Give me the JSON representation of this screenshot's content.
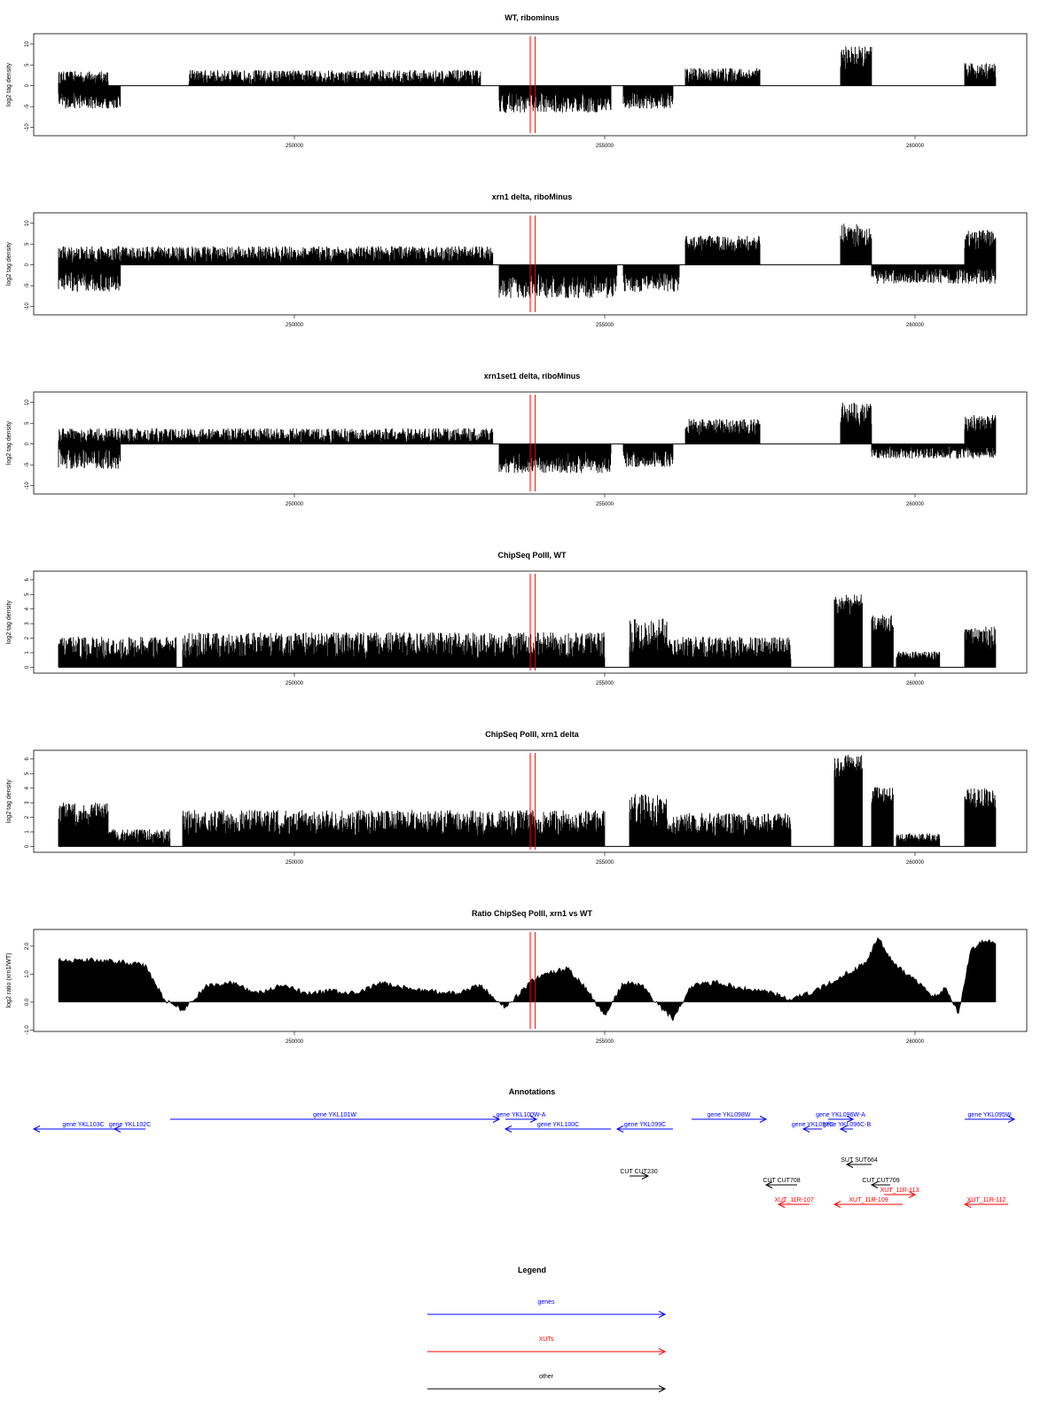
{
  "x_ticks": [
    "250000",
    "255000",
    "260000"
  ],
  "red_marker": [
    253800,
    253880
  ],
  "charts": [
    {
      "type": "bar",
      "title": "WT, ribominus",
      "ylabel": "log2 tag density",
      "y_ticks": [
        "-10",
        "-5",
        "0",
        "5",
        "10"
      ],
      "xlim": [
        245800,
        261800
      ],
      "ylim": [
        -12,
        12.5
      ],
      "chart_data": {
        "type": "bar",
        "regions": [
          {
            "x0": 246200,
            "x1": 247000,
            "y": 2,
            "noise": 1.5,
            "sign": 1
          },
          {
            "x0": 246200,
            "x1": 247200,
            "y": -3.5,
            "noise": 2,
            "sign": -1
          },
          {
            "x0": 248300,
            "x1": 253000,
            "y": 2,
            "noise": 1.8,
            "sign": 1
          },
          {
            "x0": 253300,
            "x1": 255100,
            "y": -4,
            "noise": 2.5,
            "sign": -1
          },
          {
            "x0": 255300,
            "x1": 256100,
            "y": -3.5,
            "noise": 2,
            "sign": -1
          },
          {
            "x0": 256300,
            "x1": 257500,
            "y": 2.5,
            "noise": 1.8,
            "sign": 1
          },
          {
            "x0": 258800,
            "x1": 259300,
            "y": 6.5,
            "noise": 3,
            "sign": 1
          },
          {
            "x0": 260800,
            "x1": 261300,
            "y": 3.5,
            "noise": 2,
            "sign": 1
          }
        ]
      }
    },
    {
      "type": "bar",
      "title": "xrn1 delta, riboMinus",
      "ylabel": "log2 tag density",
      "y_ticks": [
        "-10",
        "-5",
        "0",
        "5",
        "10"
      ],
      "xlim": [
        245800,
        261800
      ],
      "ylim": [
        -12,
        12.5
      ],
      "chart_data": {
        "type": "bar",
        "regions": [
          {
            "x0": 246200,
            "x1": 253200,
            "y": 2.5,
            "noise": 2,
            "sign": 1
          },
          {
            "x0": 246200,
            "x1": 247200,
            "y": -4,
            "noise": 2.5,
            "sign": -1
          },
          {
            "x0": 253300,
            "x1": 255200,
            "y": -5,
            "noise": 3,
            "sign": -1
          },
          {
            "x0": 255300,
            "x1": 256200,
            "y": -4,
            "noise": 2.5,
            "sign": -1
          },
          {
            "x0": 256300,
            "x1": 257500,
            "y": 5,
            "noise": 2,
            "sign": 1
          },
          {
            "x0": 258800,
            "x1": 259300,
            "y": 7,
            "noise": 3,
            "sign": 1
          },
          {
            "x0": 259300,
            "x1": 261300,
            "y": -2.5,
            "noise": 2,
            "sign": -1
          },
          {
            "x0": 260800,
            "x1": 261300,
            "y": 6,
            "noise": 2.5,
            "sign": 1
          }
        ]
      }
    },
    {
      "type": "bar",
      "title": "xrn1set1 delta, riboMinus",
      "ylabel": "log2 tag density",
      "y_ticks": [
        "-10",
        "-5",
        "0",
        "5",
        "10"
      ],
      "xlim": [
        245800,
        261800
      ],
      "ylim": [
        -12,
        12.5
      ],
      "chart_data": {
        "type": "bar",
        "regions": [
          {
            "x0": 246200,
            "x1": 253200,
            "y": 2,
            "noise": 1.8,
            "sign": 1
          },
          {
            "x0": 246200,
            "x1": 247200,
            "y": -3.5,
            "noise": 2.5,
            "sign": -1
          },
          {
            "x0": 253300,
            "x1": 255100,
            "y": -4.5,
            "noise": 2.5,
            "sign": -1
          },
          {
            "x0": 255300,
            "x1": 256100,
            "y": -3.5,
            "noise": 2,
            "sign": -1
          },
          {
            "x0": 256300,
            "x1": 257500,
            "y": 4,
            "noise": 2,
            "sign": 1
          },
          {
            "x0": 258800,
            "x1": 259300,
            "y": 7,
            "noise": 3,
            "sign": 1
          },
          {
            "x0": 259300,
            "x1": 261300,
            "y": -2,
            "noise": 1.5,
            "sign": -1
          },
          {
            "x0": 260800,
            "x1": 261300,
            "y": 5,
            "noise": 2,
            "sign": 1
          }
        ]
      }
    },
    {
      "type": "bar",
      "title": "ChipSeq PolII, WT",
      "ylabel": "log2 tag density",
      "y_ticks": [
        "0",
        "1",
        "2",
        "3",
        "4",
        "5",
        "6"
      ],
      "xlim": [
        245800,
        261800
      ],
      "ylim": [
        -0.4,
        6.6
      ],
      "chart_data": {
        "type": "bar",
        "regions": [
          {
            "x0": 246200,
            "x1": 248100,
            "y": 1.3,
            "noise": 0.8,
            "sign": 1
          },
          {
            "x0": 248200,
            "x1": 255000,
            "y": 1.5,
            "noise": 0.9,
            "sign": 1
          },
          {
            "x0": 255400,
            "x1": 256000,
            "y": 2.2,
            "noise": 1.2,
            "sign": 1
          },
          {
            "x0": 256000,
            "x1": 258000,
            "y": 1.3,
            "noise": 0.8,
            "sign": 1
          },
          {
            "x0": 258700,
            "x1": 259150,
            "y": 4.2,
            "noise": 0.8,
            "sign": 1
          },
          {
            "x0": 259300,
            "x1": 259650,
            "y": 3,
            "noise": 0.6,
            "sign": 1
          },
          {
            "x0": 259700,
            "x1": 260400,
            "y": 0.8,
            "noise": 0.3,
            "sign": 1
          },
          {
            "x0": 260800,
            "x1": 261300,
            "y": 2,
            "noise": 0.8,
            "sign": 1
          }
        ]
      }
    },
    {
      "type": "bar",
      "title": "ChipSeq PolII, xrn1 delta",
      "ylabel": "log2 tag density",
      "y_ticks": [
        "0",
        "1",
        "2",
        "3",
        "4",
        "5",
        "6"
      ],
      "xlim": [
        245800,
        261800
      ],
      "ylim": [
        -0.4,
        6.6
      ],
      "chart_data": {
        "type": "bar",
        "regions": [
          {
            "x0": 246200,
            "x1": 247000,
            "y": 2.2,
            "noise": 0.8,
            "sign": 1
          },
          {
            "x0": 247000,
            "x1": 248000,
            "y": 0.7,
            "noise": 0.5,
            "sign": 1
          },
          {
            "x0": 248200,
            "x1": 255000,
            "y": 1.6,
            "noise": 0.9,
            "sign": 1
          },
          {
            "x0": 255400,
            "x1": 256000,
            "y": 2.4,
            "noise": 1.2,
            "sign": 1
          },
          {
            "x0": 256000,
            "x1": 258000,
            "y": 1.5,
            "noise": 0.8,
            "sign": 1
          },
          {
            "x0": 258700,
            "x1": 259150,
            "y": 5.5,
            "noise": 0.8,
            "sign": 1
          },
          {
            "x0": 259300,
            "x1": 259650,
            "y": 3.5,
            "noise": 0.6,
            "sign": 1
          },
          {
            "x0": 259700,
            "x1": 260400,
            "y": 0.6,
            "noise": 0.3,
            "sign": 1
          },
          {
            "x0": 260800,
            "x1": 261300,
            "y": 3.3,
            "noise": 0.7,
            "sign": 1
          }
        ]
      }
    },
    {
      "type": "area",
      "title": "Ratio ChipSeq PolII, xrn1 vs WT",
      "ylabel": "log2 ratio (xrn1/WT)",
      "y_ticks": [
        "-1.0",
        "0.0",
        "1.0",
        "2.0"
      ],
      "xlim": [
        245800,
        261800
      ],
      "ylim": [
        -1.05,
        2.6
      ],
      "chart_data": {
        "type": "area",
        "x": [
          246200,
          246800,
          247200,
          247600,
          247900,
          248200,
          248600,
          249000,
          249400,
          249800,
          250200,
          250600,
          251000,
          251400,
          251800,
          252200,
          252600,
          253000,
          253400,
          253800,
          254000,
          254400,
          254700,
          255000,
          255300,
          255600,
          255900,
          256100,
          256400,
          256800,
          257200,
          257600,
          258000,
          258400,
          258800,
          259200,
          259400,
          259700,
          260000,
          260300,
          260500,
          260700,
          260900,
          261100,
          261300
        ],
        "y": [
          1.5,
          1.5,
          1.45,
          1.3,
          0.1,
          -0.3,
          0.6,
          0.7,
          0.3,
          0.6,
          0.3,
          0.4,
          0.3,
          0.7,
          0.5,
          0.4,
          0.3,
          0.6,
          -0.2,
          0.7,
          1.0,
          1.2,
          0.5,
          -0.5,
          0.7,
          0.6,
          -0.2,
          -0.6,
          0.6,
          0.7,
          0.5,
          0.4,
          0.1,
          0.4,
          0.9,
          1.4,
          2.3,
          1.3,
          0.8,
          0.2,
          0.5,
          -0.4,
          1.9,
          2.2,
          2.1
        ]
      }
    }
  ],
  "annotations": {
    "title": "Annotations",
    "items": [
      {
        "label": "gene YKL103C",
        "x0": 245800,
        "x1": 247400,
        "dir": "left",
        "row": 1,
        "color": "#0000ff"
      },
      {
        "label": "gene YKL102C",
        "x0": 247100,
        "x1": 247600,
        "dir": "left",
        "row": 1,
        "color": "#0000ff"
      },
      {
        "label": "gene YKL101W",
        "x0": 248000,
        "x1": 253300,
        "dir": "right",
        "row": 0,
        "color": "#0000ff"
      },
      {
        "label": "gene YKL100W-A",
        "x0": 253400,
        "x1": 253900,
        "dir": "right",
        "row": 0,
        "color": "#0000ff"
      },
      {
        "label": "gene YKL100C",
        "x0": 253400,
        "x1": 255100,
        "dir": "left",
        "row": 1,
        "color": "#0000ff"
      },
      {
        "label": "gene YKL099C",
        "x0": 255200,
        "x1": 256100,
        "dir": "left",
        "row": 1,
        "color": "#0000ff"
      },
      {
        "label": "gene YKL098W",
        "x0": 256400,
        "x1": 257600,
        "dir": "right",
        "row": 0,
        "color": "#0000ff"
      },
      {
        "label": "gene YKL097C",
        "x0": 258200,
        "x1": 258500,
        "dir": "left",
        "row": 1,
        "color": "#0000ff"
      },
      {
        "label": "gene YKL096W-A",
        "x0": 258600,
        "x1": 259000,
        "dir": "right",
        "row": 0,
        "color": "#0000ff"
      },
      {
        "label": "gene YKL096C-B",
        "x0": 258800,
        "x1": 259000,
        "dir": "left",
        "row": 1,
        "color": "#0000ff"
      },
      {
        "label": "gene YKL095W",
        "x0": 260800,
        "x1": 261600,
        "dir": "right",
        "row": 0,
        "color": "#0000ff"
      },
      {
        "label": "CUT CUT230",
        "x0": 255400,
        "x1": 255700,
        "dir": "right",
        "row": 3,
        "color": "#000000"
      },
      {
        "label": "SUT SUT664",
        "x0": 258900,
        "x1": 259300,
        "dir": "left",
        "row": 2,
        "color": "#000000"
      },
      {
        "label": "CUT CUT708",
        "x0": 257600,
        "x1": 258100,
        "dir": "left",
        "row": 4,
        "color": "#000000"
      },
      {
        "label": "CUT CUT709",
        "x0": 259300,
        "x1": 259600,
        "dir": "left",
        "row": 4,
        "color": "#000000"
      },
      {
        "label": "XUT_11R-113",
        "x0": 259500,
        "x1": 260000,
        "dir": "right",
        "row": 5,
        "color": "#ff0000"
      },
      {
        "label": "XUT_11R-107",
        "x0": 257800,
        "x1": 258300,
        "dir": "left",
        "row": 6,
        "color": "#ff0000"
      },
      {
        "label": "XUT_11R-109",
        "x0": 258700,
        "x1": 259800,
        "dir": "left",
        "row": 6,
        "color": "#ff0000"
      },
      {
        "label": "XUT_11R-112",
        "x0": 260800,
        "x1": 261500,
        "dir": "left",
        "row": 6,
        "color": "#ff0000"
      }
    ]
  },
  "legend": {
    "title": "Legend",
    "items": [
      {
        "label": "genes",
        "color": "#0000ff"
      },
      {
        "label": "XUTs",
        "color": "#ff0000"
      },
      {
        "label": "other",
        "color": "#000000"
      }
    ]
  }
}
